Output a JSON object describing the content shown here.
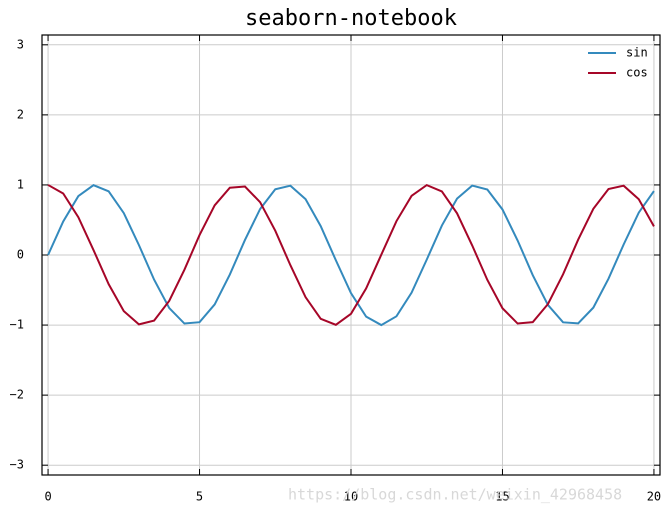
{
  "chart_data": {
    "type": "line",
    "title": "seaborn-notebook",
    "x": [
      0,
      0.5,
      1,
      1.5,
      2,
      2.5,
      3,
      3.5,
      4,
      4.5,
      5,
      5.5,
      6,
      6.5,
      7,
      7.5,
      8,
      8.5,
      9,
      9.5,
      10,
      10.5,
      11,
      11.5,
      12,
      12.5,
      13,
      13.5,
      14,
      14.5,
      15,
      15.5,
      16,
      16.5,
      17,
      17.5,
      18,
      18.5,
      19,
      19.5,
      20
    ],
    "series": [
      {
        "name": "sin",
        "color": "#348abd",
        "values": [
          0,
          0.479,
          0.841,
          0.997,
          0.909,
          0.598,
          0.141,
          -0.351,
          -0.757,
          -0.978,
          -0.959,
          -0.706,
          -0.279,
          0.215,
          0.657,
          0.938,
          0.989,
          0.798,
          0.412,
          -0.075,
          -0.544,
          -0.88,
          -1.0,
          -0.875,
          -0.537,
          -0.066,
          0.42,
          0.804,
          0.991,
          0.935,
          0.65,
          0.207,
          -0.288,
          -0.713,
          -0.961,
          -0.976,
          -0.751,
          -0.338,
          0.15,
          0.605,
          0.913
        ]
      },
      {
        "name": "cos",
        "color": "#a60628",
        "values": [
          1,
          0.878,
          0.54,
          0.071,
          -0.416,
          -0.801,
          -0.99,
          -0.936,
          -0.654,
          -0.211,
          0.284,
          0.709,
          0.96,
          0.977,
          0.754,
          0.347,
          -0.146,
          -0.602,
          -0.911,
          -0.997,
          -0.839,
          -0.476,
          0.004,
          0.483,
          0.844,
          0.998,
          0.907,
          0.595,
          0.137,
          -0.355,
          -0.76,
          -0.978,
          -0.958,
          -0.701,
          -0.275,
          0.22,
          0.66,
          0.941,
          0.989,
          0.796,
          0.408
        ]
      }
    ],
    "xlim": [
      -0.2,
      20.2
    ],
    "ylim": [
      -3.14,
      3.14
    ],
    "xticks": [
      0,
      5,
      10,
      15,
      20
    ],
    "yticks": [
      {
        "value": -3,
        "label": "−3"
      },
      {
        "value": -2,
        "label": "−2"
      },
      {
        "value": -1,
        "label": "−1"
      },
      0,
      1,
      2,
      3
    ],
    "grid": true,
    "legend": "upper right",
    "watermark": "https://blog.csdn.net/weixin_42968458"
  }
}
